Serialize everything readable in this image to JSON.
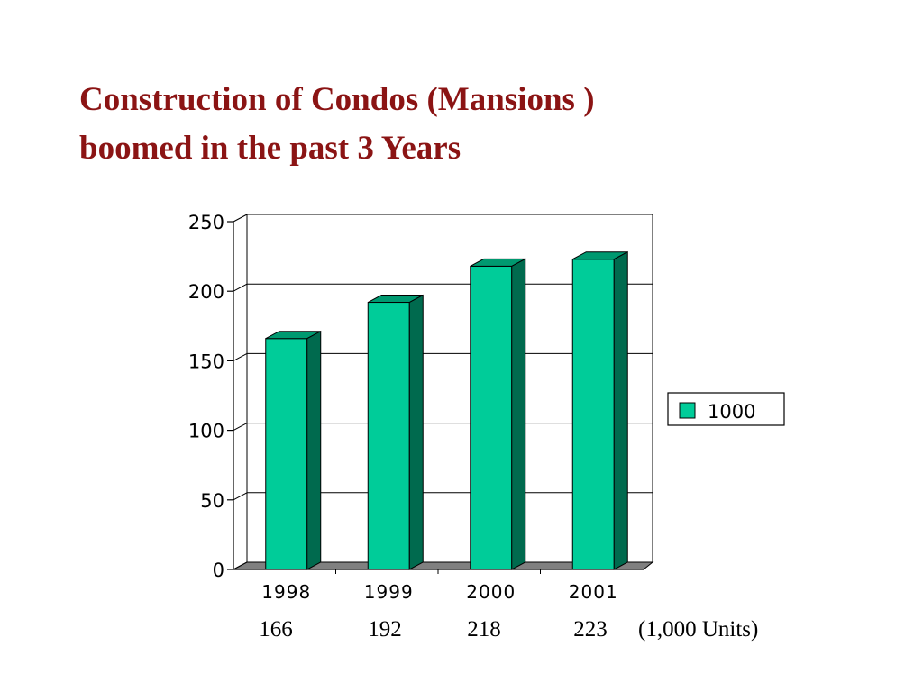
{
  "title": {
    "line1": "Construction of Condos (Mansions )",
    "line2": "boomed in the past 3 Years"
  },
  "colors": {
    "title": "#8b1414",
    "bar_front": "#00cc99",
    "bar_top": "#009970",
    "bar_side": "#006a4e"
  },
  "chart_data": {
    "type": "bar",
    "categories": [
      "1998",
      "1999",
      "2000",
      "2001"
    ],
    "series": [
      {
        "name": "1000",
        "values": [
          166,
          192,
          218,
          223
        ]
      }
    ],
    "ylim": [
      0,
      250
    ],
    "yticks": [
      0,
      50,
      100,
      150,
      200,
      250
    ],
    "grid": true,
    "legend": "right",
    "value_labels": [
      "166",
      "192",
      "218",
      "223"
    ],
    "units_note": "(1,000 Units)"
  }
}
